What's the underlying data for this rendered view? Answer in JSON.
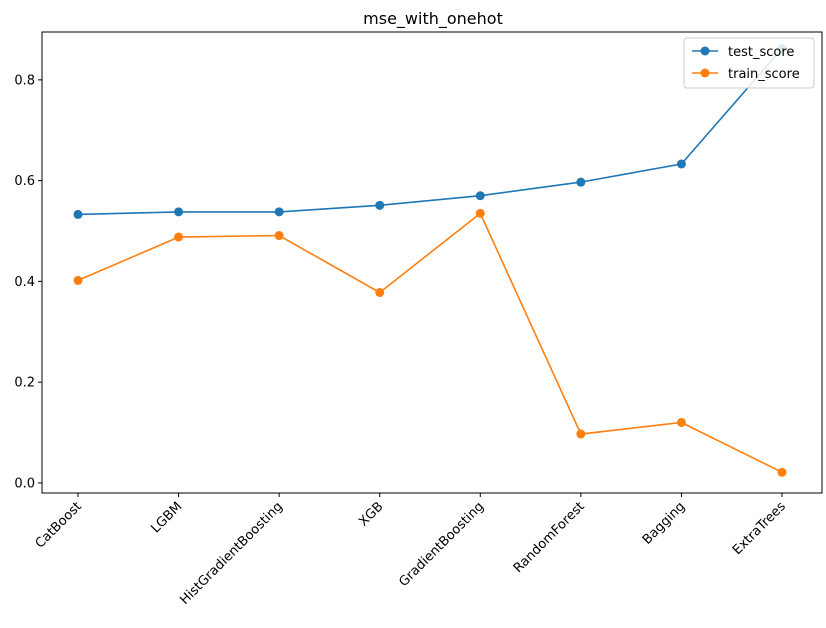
{
  "chart_data": {
    "type": "line",
    "title": "mse_with_onehot",
    "xlabel": "",
    "ylabel": "",
    "categories": [
      "CatBoost",
      "LGBM",
      "HistGradientBoosting",
      "XGB",
      "GradientBoosting",
      "RandomForest",
      "Bagging",
      "ExtraTrees"
    ],
    "yticks": [
      0.0,
      0.2,
      0.4,
      0.6,
      0.8
    ],
    "ytick_labels": [
      "0.0",
      "0.2",
      "0.4",
      "0.6",
      "0.8"
    ],
    "ylim": [
      -0.02,
      0.895
    ],
    "grid": false,
    "legend_position": "top-right",
    "series": [
      {
        "name": "test_score",
        "color": "#1f77b4",
        "values": [
          0.533,
          0.538,
          0.538,
          0.551,
          0.57,
          0.597,
          0.633,
          0.862
        ]
      },
      {
        "name": "train_score",
        "color": "#ff7f0e",
        "values": [
          0.402,
          0.488,
          0.491,
          0.378,
          0.535,
          0.097,
          0.12,
          0.021
        ]
      }
    ]
  }
}
